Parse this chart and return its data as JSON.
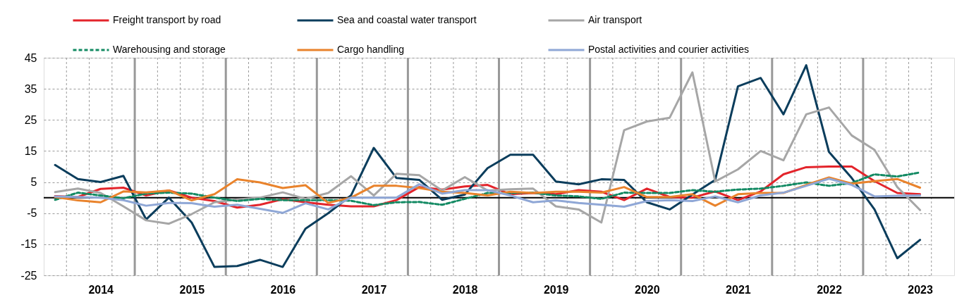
{
  "chart_data": {
    "type": "line",
    "categories": [
      null,
      null,
      "2014",
      null,
      null,
      null,
      "2015",
      null,
      null,
      null,
      "2016",
      null,
      null,
      null,
      "2017",
      null,
      null,
      null,
      "2018",
      null,
      null,
      null,
      "2019",
      null,
      null,
      null,
      "2020",
      null,
      null,
      null,
      "2021",
      null,
      null,
      null,
      "2022",
      null,
      null,
      null,
      "2023"
    ],
    "ylim": [
      -25,
      45
    ],
    "yticks": [
      -25,
      -15,
      -5,
      5,
      15,
      25,
      35,
      45
    ],
    "grid": true,
    "legend": "top",
    "line_style": "solid",
    "ref_lines": [
      {
        "axis": "y",
        "value": 0,
        "color": "#000000"
      }
    ],
    "series": [
      {
        "name": "Freight transport by road",
        "color": "#e3242b",
        "values": [
          0.5,
          0.2,
          2.8,
          3.2,
          0.7,
          2.3,
          0,
          -1.1,
          -3.2,
          -2.3,
          -0.5,
          -1.5,
          -2.3,
          -2.8,
          -2.8,
          -0.8,
          3.4,
          2.6,
          3.6,
          4.1,
          1.1,
          1.5,
          1.1,
          2.4,
          1.9,
          -0.8,
          2.9,
          0.2,
          0,
          2,
          -0.8,
          2,
          7.5,
          9.8,
          10,
          10,
          5.3,
          1.5,
          1.1
        ]
      },
      {
        "name": "Sea and coastal water transport",
        "color": "#0b3d5c",
        "values": [
          10.5,
          6,
          5,
          7,
          -7,
          0,
          -8,
          -22.3,
          -22,
          -20,
          -22.3,
          -10,
          -5,
          0.7,
          16,
          6.3,
          5.7,
          -0.7,
          1,
          9.5,
          13.8,
          13.8,
          5.2,
          4.3,
          5.9,
          5.7,
          -1.5,
          -3.8,
          1,
          5.7,
          35.8,
          38.5,
          26.8,
          42.6,
          14.7,
          6.3,
          -3.8,
          -19.5,
          -13.6
        ]
      },
      {
        "name": "Air transport",
        "color": "#a6a6a6",
        "values": [
          1.8,
          2.9,
          1.5,
          -2.8,
          -7.3,
          -8.4,
          -5.3,
          -1.5,
          -0.6,
          0,
          1.7,
          -0.4,
          1.5,
          6.9,
          0.7,
          7.7,
          7.2,
          2.3,
          6.6,
          2.3,
          2.7,
          2.9,
          -2.8,
          -3.8,
          -8,
          21.7,
          24.5,
          25.7,
          40.3,
          5.2,
          9.1,
          15,
          12,
          26.8,
          29,
          20,
          15.4,
          3.4,
          -4
        ]
      },
      {
        "name": "Warehousing and storage",
        "color": "#138a63",
        "line_style": "dashed",
        "values": [
          -0.7,
          1.6,
          0.7,
          -0.2,
          1.3,
          1.6,
          1.3,
          0,
          -1.1,
          -0.4,
          -0.8,
          -0.8,
          -0.8,
          -1,
          -2.4,
          -1.5,
          -1.4,
          -2.3,
          -0.4,
          1.5,
          1.5,
          1.6,
          0.7,
          0.4,
          -0.4,
          1.6,
          1.5,
          1.5,
          2.4,
          1.9,
          2.6,
          2.9,
          3.8,
          4.9,
          3.8,
          4.7,
          7.5,
          6.8,
          8.1
        ]
      },
      {
        "name": "Cargo handling",
        "color": "#e9832c",
        "values": [
          0.2,
          -0.9,
          -1.5,
          2,
          1.7,
          2.3,
          -0.9,
          1.1,
          5.9,
          4.9,
          3.1,
          4,
          -1.7,
          0,
          3.8,
          3.8,
          3.1,
          1.9,
          1.5,
          0.7,
          1.9,
          1.5,
          1.9,
          1.9,
          1.6,
          3.4,
          0.2,
          0.2,
          1.1,
          -2.6,
          1.1,
          1.5,
          1.5,
          4.1,
          6.5,
          4.5,
          5.3,
          6,
          3.2
        ]
      },
      {
        "name": "Postal activities and courier activities",
        "color": "#8fa7d6",
        "values": [
          0.4,
          0.2,
          0,
          -0.8,
          -2.6,
          -1.7,
          -1.8,
          -2.9,
          -2.3,
          -3.6,
          -4.9,
          -1.8,
          -3.8,
          0,
          0,
          0,
          4.3,
          1.3,
          2.4,
          2.4,
          0.7,
          -1.5,
          -0.9,
          -1.7,
          -2.3,
          -2.9,
          -1.1,
          -0.8,
          -1.1,
          0.4,
          -1.5,
          0.7,
          1.6,
          3.8,
          6.1,
          4.1,
          0.4,
          0.6,
          0.7
        ]
      }
    ]
  }
}
